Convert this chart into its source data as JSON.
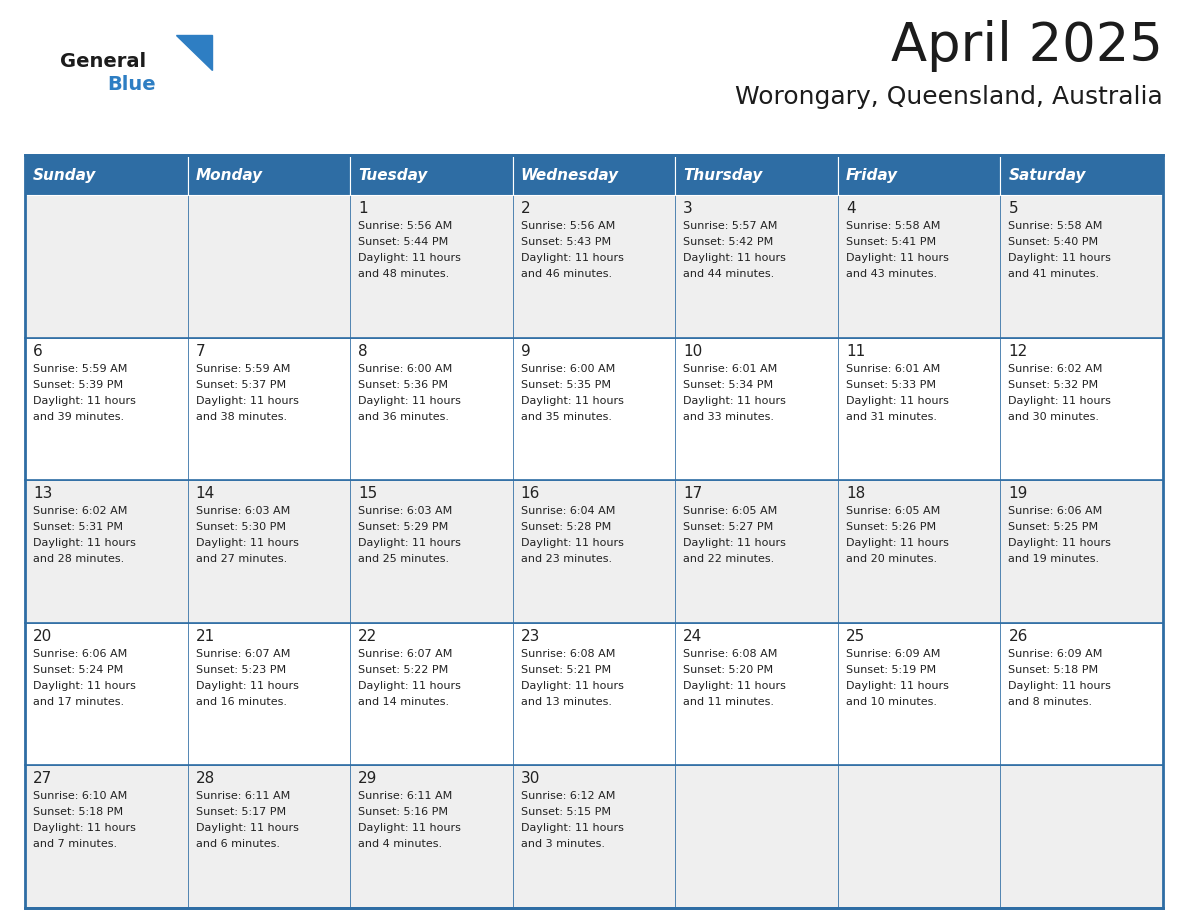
{
  "title": "April 2025",
  "subtitle": "Worongary, Queensland, Australia",
  "header_bg": "#2E6DA4",
  "header_text": "#FFFFFF",
  "row_bg_even": "#EFEFEF",
  "row_bg_odd": "#FFFFFF",
  "border_color": "#2E6DA4",
  "text_color": "#222222",
  "day_headers": [
    "Sunday",
    "Monday",
    "Tuesday",
    "Wednesday",
    "Thursday",
    "Friday",
    "Saturday"
  ],
  "weeks": [
    [
      {
        "day": "",
        "sunrise": "",
        "sunset": "",
        "daylight": ""
      },
      {
        "day": "",
        "sunrise": "",
        "sunset": "",
        "daylight": ""
      },
      {
        "day": "1",
        "sunrise": "Sunrise: 5:56 AM",
        "sunset": "Sunset: 5:44 PM",
        "daylight": "Daylight: 11 hours\nand 48 minutes."
      },
      {
        "day": "2",
        "sunrise": "Sunrise: 5:56 AM",
        "sunset": "Sunset: 5:43 PM",
        "daylight": "Daylight: 11 hours\nand 46 minutes."
      },
      {
        "day": "3",
        "sunrise": "Sunrise: 5:57 AM",
        "sunset": "Sunset: 5:42 PM",
        "daylight": "Daylight: 11 hours\nand 44 minutes."
      },
      {
        "day": "4",
        "sunrise": "Sunrise: 5:58 AM",
        "sunset": "Sunset: 5:41 PM",
        "daylight": "Daylight: 11 hours\nand 43 minutes."
      },
      {
        "day": "5",
        "sunrise": "Sunrise: 5:58 AM",
        "sunset": "Sunset: 5:40 PM",
        "daylight": "Daylight: 11 hours\nand 41 minutes."
      }
    ],
    [
      {
        "day": "6",
        "sunrise": "Sunrise: 5:59 AM",
        "sunset": "Sunset: 5:39 PM",
        "daylight": "Daylight: 11 hours\nand 39 minutes."
      },
      {
        "day": "7",
        "sunrise": "Sunrise: 5:59 AM",
        "sunset": "Sunset: 5:37 PM",
        "daylight": "Daylight: 11 hours\nand 38 minutes."
      },
      {
        "day": "8",
        "sunrise": "Sunrise: 6:00 AM",
        "sunset": "Sunset: 5:36 PM",
        "daylight": "Daylight: 11 hours\nand 36 minutes."
      },
      {
        "day": "9",
        "sunrise": "Sunrise: 6:00 AM",
        "sunset": "Sunset: 5:35 PM",
        "daylight": "Daylight: 11 hours\nand 35 minutes."
      },
      {
        "day": "10",
        "sunrise": "Sunrise: 6:01 AM",
        "sunset": "Sunset: 5:34 PM",
        "daylight": "Daylight: 11 hours\nand 33 minutes."
      },
      {
        "day": "11",
        "sunrise": "Sunrise: 6:01 AM",
        "sunset": "Sunset: 5:33 PM",
        "daylight": "Daylight: 11 hours\nand 31 minutes."
      },
      {
        "day": "12",
        "sunrise": "Sunrise: 6:02 AM",
        "sunset": "Sunset: 5:32 PM",
        "daylight": "Daylight: 11 hours\nand 30 minutes."
      }
    ],
    [
      {
        "day": "13",
        "sunrise": "Sunrise: 6:02 AM",
        "sunset": "Sunset: 5:31 PM",
        "daylight": "Daylight: 11 hours\nand 28 minutes."
      },
      {
        "day": "14",
        "sunrise": "Sunrise: 6:03 AM",
        "sunset": "Sunset: 5:30 PM",
        "daylight": "Daylight: 11 hours\nand 27 minutes."
      },
      {
        "day": "15",
        "sunrise": "Sunrise: 6:03 AM",
        "sunset": "Sunset: 5:29 PM",
        "daylight": "Daylight: 11 hours\nand 25 minutes."
      },
      {
        "day": "16",
        "sunrise": "Sunrise: 6:04 AM",
        "sunset": "Sunset: 5:28 PM",
        "daylight": "Daylight: 11 hours\nand 23 minutes."
      },
      {
        "day": "17",
        "sunrise": "Sunrise: 6:05 AM",
        "sunset": "Sunset: 5:27 PM",
        "daylight": "Daylight: 11 hours\nand 22 minutes."
      },
      {
        "day": "18",
        "sunrise": "Sunrise: 6:05 AM",
        "sunset": "Sunset: 5:26 PM",
        "daylight": "Daylight: 11 hours\nand 20 minutes."
      },
      {
        "day": "19",
        "sunrise": "Sunrise: 6:06 AM",
        "sunset": "Sunset: 5:25 PM",
        "daylight": "Daylight: 11 hours\nand 19 minutes."
      }
    ],
    [
      {
        "day": "20",
        "sunrise": "Sunrise: 6:06 AM",
        "sunset": "Sunset: 5:24 PM",
        "daylight": "Daylight: 11 hours\nand 17 minutes."
      },
      {
        "day": "21",
        "sunrise": "Sunrise: 6:07 AM",
        "sunset": "Sunset: 5:23 PM",
        "daylight": "Daylight: 11 hours\nand 16 minutes."
      },
      {
        "day": "22",
        "sunrise": "Sunrise: 6:07 AM",
        "sunset": "Sunset: 5:22 PM",
        "daylight": "Daylight: 11 hours\nand 14 minutes."
      },
      {
        "day": "23",
        "sunrise": "Sunrise: 6:08 AM",
        "sunset": "Sunset: 5:21 PM",
        "daylight": "Daylight: 11 hours\nand 13 minutes."
      },
      {
        "day": "24",
        "sunrise": "Sunrise: 6:08 AM",
        "sunset": "Sunset: 5:20 PM",
        "daylight": "Daylight: 11 hours\nand 11 minutes."
      },
      {
        "day": "25",
        "sunrise": "Sunrise: 6:09 AM",
        "sunset": "Sunset: 5:19 PM",
        "daylight": "Daylight: 11 hours\nand 10 minutes."
      },
      {
        "day": "26",
        "sunrise": "Sunrise: 6:09 AM",
        "sunset": "Sunset: 5:18 PM",
        "daylight": "Daylight: 11 hours\nand 8 minutes."
      }
    ],
    [
      {
        "day": "27",
        "sunrise": "Sunrise: 6:10 AM",
        "sunset": "Sunset: 5:18 PM",
        "daylight": "Daylight: 11 hours\nand 7 minutes."
      },
      {
        "day": "28",
        "sunrise": "Sunrise: 6:11 AM",
        "sunset": "Sunset: 5:17 PM",
        "daylight": "Daylight: 11 hours\nand 6 minutes."
      },
      {
        "day": "29",
        "sunrise": "Sunrise: 6:11 AM",
        "sunset": "Sunset: 5:16 PM",
        "daylight": "Daylight: 11 hours\nand 4 minutes."
      },
      {
        "day": "30",
        "sunrise": "Sunrise: 6:12 AM",
        "sunset": "Sunset: 5:15 PM",
        "daylight": "Daylight: 11 hours\nand 3 minutes."
      },
      {
        "day": "",
        "sunrise": "",
        "sunset": "",
        "daylight": ""
      },
      {
        "day": "",
        "sunrise": "",
        "sunset": "",
        "daylight": ""
      },
      {
        "day": "",
        "sunrise": "",
        "sunset": "",
        "daylight": ""
      }
    ]
  ],
  "fig_width": 11.88,
  "fig_height": 9.18,
  "dpi": 100
}
